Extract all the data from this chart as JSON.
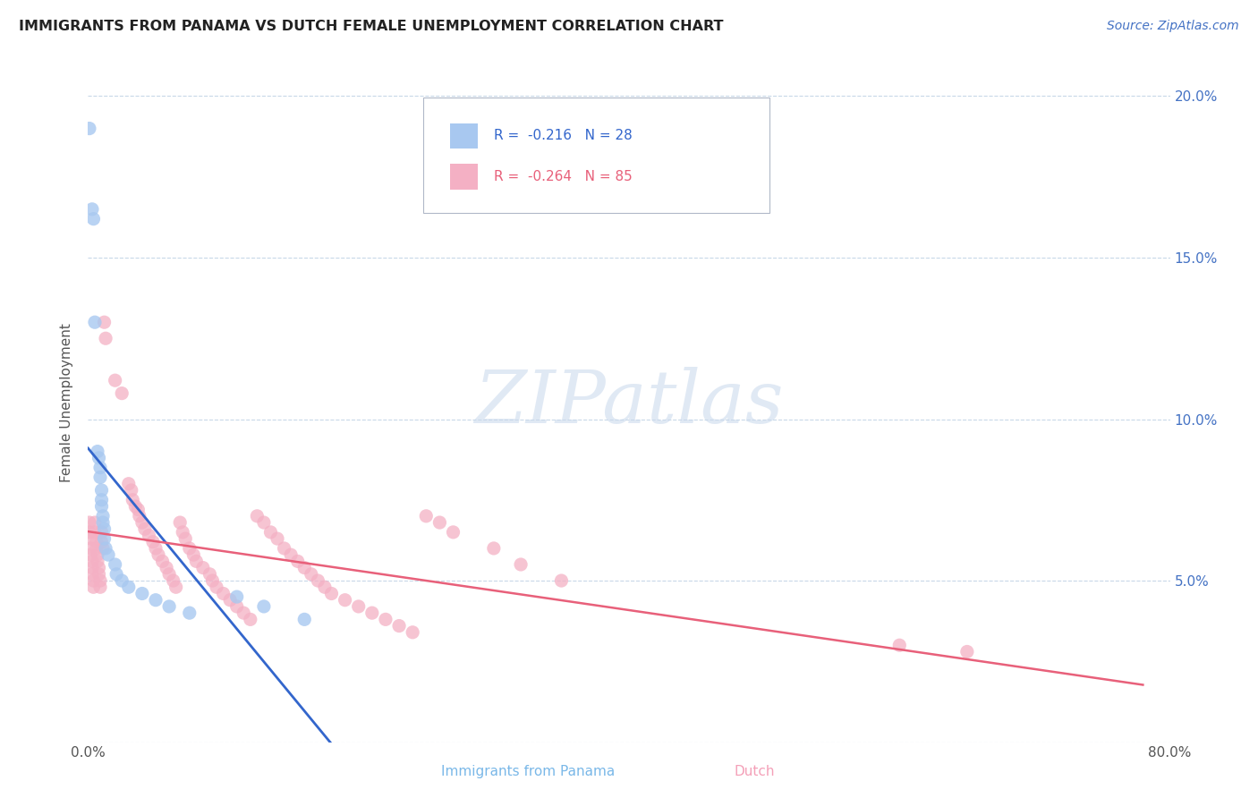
{
  "title": "IMMIGRANTS FROM PANAMA VS DUTCH FEMALE UNEMPLOYMENT CORRELATION CHART",
  "source": "Source: ZipAtlas.com",
  "ylabel": "Female Unemployment",
  "watermark": "ZIPatlas",
  "xlim": [
    0.0,
    0.8
  ],
  "ylim": [
    0.0,
    0.21
  ],
  "panama_color": "#a8c8f0",
  "dutch_color": "#f4b0c4",
  "panama_line_color": "#3366cc",
  "dutch_line_color": "#e8607a",
  "panama_line_dashed_color": "#aac4e8",
  "bg_color": "#ffffff",
  "grid_color": "#c8d8e8",
  "title_color": "#222222",
  "source_color": "#4472c4",
  "right_tick_color": "#4472c4",
  "panama_label_color": "#7ab8e8",
  "dutch_label_color": "#f4a0b8",
  "legend_r1": "R =  -0.216   N = 28",
  "legend_r2": "R =  -0.264   N = 85",
  "panama_points": [
    [
      0.001,
      0.19
    ],
    [
      0.003,
      0.165
    ],
    [
      0.004,
      0.162
    ],
    [
      0.005,
      0.13
    ],
    [
      0.007,
      0.09
    ],
    [
      0.008,
      0.088
    ],
    [
      0.009,
      0.085
    ],
    [
      0.009,
      0.082
    ],
    [
      0.01,
      0.078
    ],
    [
      0.01,
      0.075
    ],
    [
      0.01,
      0.073
    ],
    [
      0.011,
      0.07
    ],
    [
      0.011,
      0.068
    ],
    [
      0.012,
      0.066
    ],
    [
      0.012,
      0.063
    ],
    [
      0.013,
      0.06
    ],
    [
      0.015,
      0.058
    ],
    [
      0.02,
      0.055
    ],
    [
      0.021,
      0.052
    ],
    [
      0.025,
      0.05
    ],
    [
      0.03,
      0.048
    ],
    [
      0.04,
      0.046
    ],
    [
      0.05,
      0.044
    ],
    [
      0.06,
      0.042
    ],
    [
      0.075,
      0.04
    ],
    [
      0.11,
      0.045
    ],
    [
      0.13,
      0.042
    ],
    [
      0.16,
      0.038
    ]
  ],
  "dutch_points": [
    [
      0.001,
      0.068
    ],
    [
      0.001,
      0.065
    ],
    [
      0.002,
      0.063
    ],
    [
      0.002,
      0.06
    ],
    [
      0.002,
      0.058
    ],
    [
      0.003,
      0.056
    ],
    [
      0.003,
      0.054
    ],
    [
      0.003,
      0.052
    ],
    [
      0.004,
      0.05
    ],
    [
      0.004,
      0.048
    ],
    [
      0.005,
      0.068
    ],
    [
      0.005,
      0.065
    ],
    [
      0.006,
      0.062
    ],
    [
      0.006,
      0.06
    ],
    [
      0.007,
      0.058
    ],
    [
      0.007,
      0.056
    ],
    [
      0.008,
      0.054
    ],
    [
      0.008,
      0.052
    ],
    [
      0.009,
      0.05
    ],
    [
      0.009,
      0.048
    ],
    [
      0.01,
      0.065
    ],
    [
      0.01,
      0.062
    ],
    [
      0.011,
      0.06
    ],
    [
      0.012,
      0.13
    ],
    [
      0.013,
      0.125
    ],
    [
      0.02,
      0.112
    ],
    [
      0.025,
      0.108
    ],
    [
      0.03,
      0.08
    ],
    [
      0.032,
      0.078
    ],
    [
      0.033,
      0.075
    ],
    [
      0.035,
      0.073
    ],
    [
      0.037,
      0.072
    ],
    [
      0.038,
      0.07
    ],
    [
      0.04,
      0.068
    ],
    [
      0.042,
      0.066
    ],
    [
      0.045,
      0.064
    ],
    [
      0.048,
      0.062
    ],
    [
      0.05,
      0.06
    ],
    [
      0.052,
      0.058
    ],
    [
      0.055,
      0.056
    ],
    [
      0.058,
      0.054
    ],
    [
      0.06,
      0.052
    ],
    [
      0.063,
      0.05
    ],
    [
      0.065,
      0.048
    ],
    [
      0.068,
      0.068
    ],
    [
      0.07,
      0.065
    ],
    [
      0.072,
      0.063
    ],
    [
      0.075,
      0.06
    ],
    [
      0.078,
      0.058
    ],
    [
      0.08,
      0.056
    ],
    [
      0.085,
      0.054
    ],
    [
      0.09,
      0.052
    ],
    [
      0.092,
      0.05
    ],
    [
      0.095,
      0.048
    ],
    [
      0.1,
      0.046
    ],
    [
      0.105,
      0.044
    ],
    [
      0.11,
      0.042
    ],
    [
      0.115,
      0.04
    ],
    [
      0.12,
      0.038
    ],
    [
      0.125,
      0.07
    ],
    [
      0.13,
      0.068
    ],
    [
      0.135,
      0.065
    ],
    [
      0.14,
      0.063
    ],
    [
      0.145,
      0.06
    ],
    [
      0.15,
      0.058
    ],
    [
      0.155,
      0.056
    ],
    [
      0.16,
      0.054
    ],
    [
      0.165,
      0.052
    ],
    [
      0.17,
      0.05
    ],
    [
      0.175,
      0.048
    ],
    [
      0.18,
      0.046
    ],
    [
      0.19,
      0.044
    ],
    [
      0.2,
      0.042
    ],
    [
      0.21,
      0.04
    ],
    [
      0.22,
      0.038
    ],
    [
      0.23,
      0.036
    ],
    [
      0.24,
      0.034
    ],
    [
      0.25,
      0.07
    ],
    [
      0.26,
      0.068
    ],
    [
      0.27,
      0.065
    ],
    [
      0.3,
      0.06
    ],
    [
      0.32,
      0.055
    ],
    [
      0.35,
      0.05
    ],
    [
      0.6,
      0.03
    ],
    [
      0.65,
      0.028
    ]
  ]
}
